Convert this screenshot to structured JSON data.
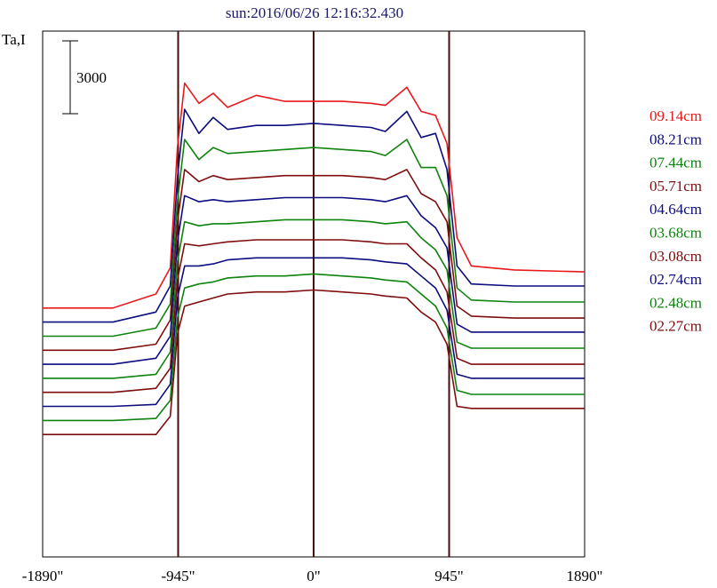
{
  "chart_data": {
    "type": "line",
    "title": "sun:2016/06/26 12:16:32.430",
    "ylabel": "Ta,I",
    "scale_bar_label": "3000",
    "x_ticks": [
      "-1890\"",
      "-945\"",
      "0\"",
      "945\"",
      "1890\""
    ],
    "x_tick_values": [
      -1890,
      -945,
      0,
      945,
      1890
    ],
    "xlim": [
      -1890,
      1890
    ],
    "vertical_markers": [
      -945,
      0,
      945
    ],
    "colors": {
      "red": "#e8191b",
      "navy": "#0d0d7f",
      "green": "#0e830e",
      "maroon": "#7f0d0d",
      "frame": "#000000",
      "markers": "#4a0a0a"
    },
    "series": [
      {
        "name": "09.14cm",
        "color": "#e8191b",
        "values": [
          600,
          600,
          950,
          1600,
          4600,
          6200,
          5700,
          5950,
          5600,
          5900,
          5750,
          5750,
          5750,
          5700,
          5650,
          6100,
          5500,
          5400,
          4700,
          2350,
          1650,
          1550,
          1500
        ]
      },
      {
        "name": "08.21cm",
        "color": "#0d0d7f",
        "values": [
          600,
          600,
          850,
          1500,
          4200,
          5900,
          5300,
          5700,
          5400,
          5500,
          5500,
          5550,
          5500,
          5450,
          5350,
          5850,
          5200,
          5300,
          4400,
          2000,
          1550,
          1500,
          1500
        ]
      },
      {
        "name": "07.44cm",
        "color": "#0e830e",
        "values": [
          600,
          600,
          800,
          1400,
          3950,
          5500,
          5000,
          5300,
          5150,
          5200,
          5250,
          5300,
          5250,
          5200,
          5100,
          5500,
          4800,
          4800,
          4100,
          1800,
          1500,
          1450,
          1450
        ]
      },
      {
        "name": "05.71cm",
        "color": "#7f0d0d",
        "values": [
          600,
          600,
          750,
          1350,
          3800,
          5100,
          4800,
          4950,
          4850,
          4900,
          4950,
          4950,
          4950,
          4900,
          4850,
          5100,
          4500,
          4300,
          3800,
          1700,
          1450,
          1400,
          1400
        ]
      },
      {
        "name": "04.64cm",
        "color": "#0d0d7f",
        "values": [
          600,
          600,
          750,
          1300,
          3650,
          4800,
          4650,
          4700,
          4650,
          4700,
          4750,
          4750,
          4750,
          4700,
          4650,
          4800,
          4300,
          4000,
          3500,
          1600,
          1400,
          1400,
          1400
        ]
      },
      {
        "name": "03.68cm",
        "color": "#0e830e",
        "values": [
          600,
          600,
          700,
          1250,
          3500,
          4500,
          4400,
          4450,
          4450,
          4500,
          4550,
          4550,
          4550,
          4500,
          4450,
          4500,
          4100,
          3800,
          3300,
          1500,
          1350,
          1350,
          1350
        ]
      },
      {
        "name": "03.08cm",
        "color": "#7f0d0d",
        "values": [
          600,
          600,
          700,
          1200,
          3400,
          4300,
          4250,
          4300,
          4350,
          4400,
          4400,
          4400,
          4400,
          4350,
          4300,
          4300,
          3950,
          3650,
          3100,
          1450,
          1300,
          1300,
          1300
        ]
      },
      {
        "name": "02.74cm",
        "color": "#0d0d7f",
        "values": [
          600,
          600,
          650,
          1150,
          3300,
          4100,
          4100,
          4150,
          4250,
          4300,
          4300,
          4300,
          4300,
          4250,
          4200,
          4150,
          3850,
          3550,
          3000,
          1400,
          1300,
          1300,
          1300
        ]
      },
      {
        "name": "02.48cm",
        "color": "#0e830e",
        "values": [
          600,
          600,
          650,
          1100,
          3150,
          3900,
          4000,
          4050,
          4150,
          4200,
          4200,
          4250,
          4200,
          4150,
          4100,
          4050,
          3750,
          3450,
          2900,
          1350,
          1250,
          1250,
          1250
        ]
      },
      {
        "name": "02.27cm",
        "color": "#7f0d0d",
        "values": [
          600,
          600,
          600,
          1050,
          3100,
          3800,
          3900,
          4000,
          4100,
          4150,
          4150,
          4200,
          4150,
          4100,
          4050,
          4000,
          3650,
          3400,
          2850,
          1300,
          1250,
          1250,
          1250
        ]
      }
    ],
    "x_samples": [
      -1890,
      -1400,
      -1100,
      -1000,
      -950,
      -900,
      -800,
      -700,
      -600,
      -400,
      -200,
      0,
      200,
      400,
      500,
      650,
      750,
      850,
      930,
      1000,
      1100,
      1400,
      1890
    ],
    "series_offsets": [
      3000,
      2650,
      2300,
      1950,
      1600,
      1250,
      900,
      550,
      200,
      -150
    ],
    "ylim": [
      -2600,
      10500
    ],
    "grid": false,
    "legend_position": "right"
  }
}
